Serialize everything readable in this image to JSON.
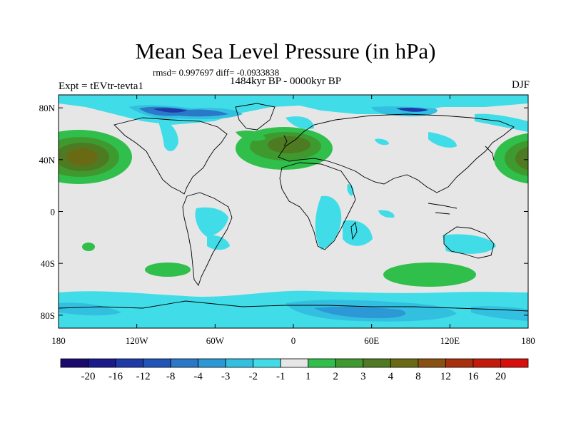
{
  "header": {
    "title": "Mean Sea Level Pressure (in hPa)",
    "stats": "rmsd= 0.997697 diff= -0.0933838",
    "period": "1484kyr BP - 0000kyr BP",
    "experiment": "Expt = tEVtr-tevta1",
    "season": "DJF"
  },
  "axes": {
    "lat_ticks": [
      {
        "label": "80N",
        "lat": 80
      },
      {
        "label": "40N",
        "lat": 40
      },
      {
        "label": "0",
        "lat": 0
      },
      {
        "label": "40S",
        "lat": -40
      },
      {
        "label": "80S",
        "lat": -80
      }
    ],
    "lon_ticks": [
      {
        "label": "180",
        "lon": -180
      },
      {
        "label": "120W",
        "lon": -120
      },
      {
        "label": "60W",
        "lon": -60
      },
      {
        "label": "0",
        "lon": 0
      },
      {
        "label": "60E",
        "lon": 60
      },
      {
        "label": "120E",
        "lon": 120
      },
      {
        "label": "180",
        "lon": 180
      }
    ]
  },
  "colorbar": {
    "levels": [
      "-20",
      "-16",
      "-12",
      "-8",
      "-4",
      "-3",
      "-2",
      "-1",
      "1",
      "2",
      "3",
      "4",
      "8",
      "12",
      "16",
      "20"
    ],
    "colors": [
      "#1a0a6e",
      "#1a1a8c",
      "#1e3aa8",
      "#1f55b8",
      "#2a78c8",
      "#2d98d6",
      "#33bfe0",
      "#40dde8",
      "#e6e6e6",
      "#2fbf4a",
      "#3e9a2e",
      "#4e7a22",
      "#6b6a14",
      "#8a5012",
      "#a8300c",
      "#c41a0a",
      "#d80e0a"
    ]
  },
  "fields": {
    "background": "#e6e6e6",
    "ocean_neutral": "#e6e6e6"
  }
}
